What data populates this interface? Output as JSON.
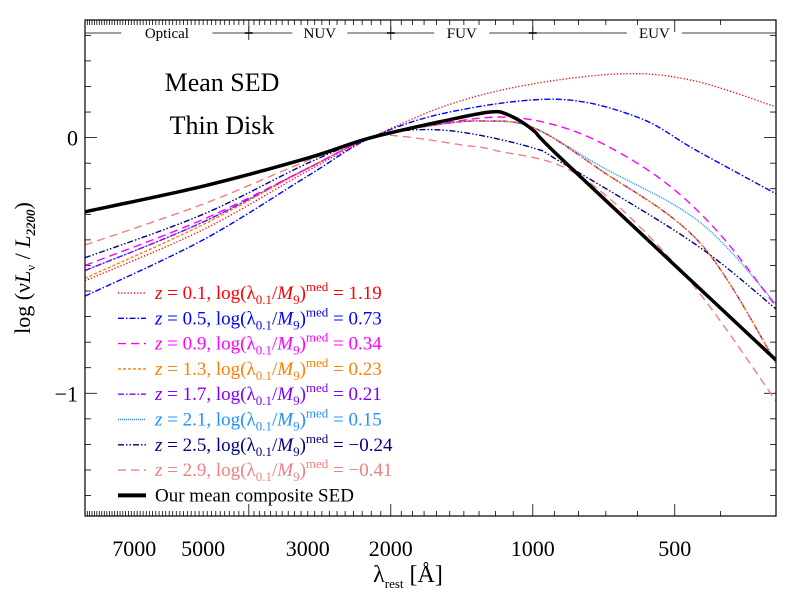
{
  "chart_data": {
    "type": "line",
    "title_lines": [
      "Mean SED",
      "Thin Disk"
    ],
    "xlabel": {
      "main": "λ",
      "sub": "rest",
      "unit": " [Å]"
    },
    "ylabel": {
      "prefix": "log (ν",
      "L": "L",
      "nu": "ν",
      "mid": " / ",
      "L2": "L",
      "sub2": "2200",
      "suffix": ")"
    },
    "x_scale": "log",
    "x_reversed": true,
    "xlim": [
      8900,
      305
    ],
    "ylim": [
      -1.48,
      0.46
    ],
    "x_ticks": [
      7000,
      5000,
      3000,
      2000,
      1000,
      500
    ],
    "x_tick_labels": [
      "7000",
      "5000",
      "3000",
      "2000",
      "1000",
      "500"
    ],
    "y_ticks": [
      0,
      -1
    ],
    "y_tick_labels": [
      "0",
      "−1"
    ],
    "grid": false,
    "legend_placement": "bottom-left",
    "bands": [
      {
        "label": "Optical",
        "from": 8900,
        "to": 4000
      },
      {
        "label": "NUV",
        "from": 4000,
        "to": 2000
      },
      {
        "label": "FUV",
        "from": 2000,
        "to": 1000
      },
      {
        "label": "EUV",
        "from": 1000,
        "to": 305
      }
    ],
    "legend_template": {
      "z": "z",
      "eq": " = ",
      "log": "log(λ",
      "lsub": "0.1",
      "slash": "/",
      "M": "M",
      "msub": "9",
      "close": ")",
      "sup": "med"
    },
    "series": [
      {
        "z": "0.1",
        "value": "1.19",
        "color": "#ff0000",
        "dash": "1.2,2",
        "points": [
          [
            8900,
            -0.56
          ],
          [
            5000,
            -0.36
          ],
          [
            3000,
            -0.13
          ],
          [
            2200,
            0
          ],
          [
            1500,
            0.13
          ],
          [
            1000,
            0.21
          ],
          [
            632,
            0.25
          ],
          [
            450,
            0.22
          ],
          [
            305,
            0.12
          ]
        ]
      },
      {
        "z": "0.5",
        "value": "0.73",
        "color": "#0000ff",
        "dash": "6,2,1.5,2",
        "points": [
          [
            8900,
            -0.62
          ],
          [
            5000,
            -0.4
          ],
          [
            3000,
            -0.15
          ],
          [
            2200,
            0
          ],
          [
            1500,
            0.1
          ],
          [
            890,
            0.15
          ],
          [
            600,
            0.08
          ],
          [
            450,
            -0.05
          ],
          [
            305,
            -0.22
          ]
        ]
      },
      {
        "z": "0.9",
        "value": "0.34",
        "color": "#ff00ff",
        "dash": "8,5",
        "points": [
          [
            8900,
            -0.5
          ],
          [
            5000,
            -0.32
          ],
          [
            3000,
            -0.12
          ],
          [
            2200,
            0
          ],
          [
            1500,
            0.06
          ],
          [
            1150,
            0.08
          ],
          [
            900,
            0.05
          ],
          [
            700,
            -0.03
          ],
          [
            520,
            -0.18
          ],
          [
            400,
            -0.38
          ],
          [
            305,
            -0.66
          ]
        ]
      },
      {
        "z": "1.3",
        "value": "0.23",
        "color": "#ff7f00",
        "dash": "3,2",
        "points": [
          [
            8900,
            -0.55
          ],
          [
            5000,
            -0.34
          ],
          [
            3000,
            -0.12
          ],
          [
            2200,
            0
          ],
          [
            1600,
            0.05
          ],
          [
            1276,
            0.065
          ],
          [
            1000,
            0.04
          ],
          [
            721,
            -0.125
          ],
          [
            443,
            -0.41
          ],
          [
            305,
            -0.88
          ]
        ]
      },
      {
        "z": "1.7",
        "value": "0.21",
        "color": "#8000ff",
        "dash": "6,2,1.5,2",
        "points": [
          [
            8900,
            -0.52
          ],
          [
            5000,
            -0.33
          ],
          [
            3000,
            -0.12
          ],
          [
            2200,
            0
          ],
          [
            1600,
            0.05
          ],
          [
            1276,
            0.065
          ],
          [
            1000,
            0.04
          ],
          [
            721,
            -0.125
          ],
          [
            443,
            -0.41
          ],
          [
            305,
            -0.88
          ]
        ]
      },
      {
        "z": "2.1",
        "value": "0.15",
        "color": "#1e90ff",
        "dash": "1,1",
        "points": [
          [
            8900,
            -0.52
          ],
          [
            5000,
            -0.33
          ],
          [
            3000,
            -0.12
          ],
          [
            2200,
            0
          ],
          [
            1600,
            0.05
          ],
          [
            1276,
            0.065
          ],
          [
            1000,
            0.04
          ],
          [
            721,
            -0.11
          ],
          [
            443,
            -0.33
          ],
          [
            305,
            -0.65
          ]
        ]
      },
      {
        "z": "2.5",
        "value": "−0.24",
        "color": "#000080",
        "dash": "6,2,1.5,2,1.5,2",
        "points": [
          [
            8900,
            -0.47
          ],
          [
            5000,
            -0.3
          ],
          [
            3000,
            -0.1
          ],
          [
            2200,
            0
          ],
          [
            1800,
            0.03
          ],
          [
            1400,
            0.02
          ],
          [
            1000,
            -0.04
          ],
          [
            864,
            -0.1
          ],
          [
            458,
            -0.41
          ],
          [
            305,
            -0.67
          ]
        ]
      },
      {
        "z": "2.9",
        "value": "−0.41",
        "color": "#f08080",
        "dash": "8,5",
        "points": [
          [
            8900,
            -0.42
          ],
          [
            5000,
            -0.26
          ],
          [
            3000,
            -0.09
          ],
          [
            2200,
            0
          ],
          [
            1900,
            0.005
          ],
          [
            1400,
            -0.03
          ],
          [
            1200,
            -0.05
          ],
          [
            795,
            -0.15
          ],
          [
            480,
            -0.53
          ],
          [
            305,
            -1.03
          ]
        ]
      },
      {
        "name": "Our mean composite SED",
        "color": "#000000",
        "dash": "",
        "thick": true,
        "points": [
          [
            8900,
            -0.29
          ],
          [
            5000,
            -0.19
          ],
          [
            3000,
            -0.08
          ],
          [
            2200,
            0
          ],
          [
            1500,
            0.07
          ],
          [
            1230,
            0.1
          ],
          [
            1130,
            0.09
          ],
          [
            1000,
            0.03
          ],
          [
            850,
            -0.1
          ],
          [
            305,
            -0.87
          ]
        ]
      }
    ]
  }
}
